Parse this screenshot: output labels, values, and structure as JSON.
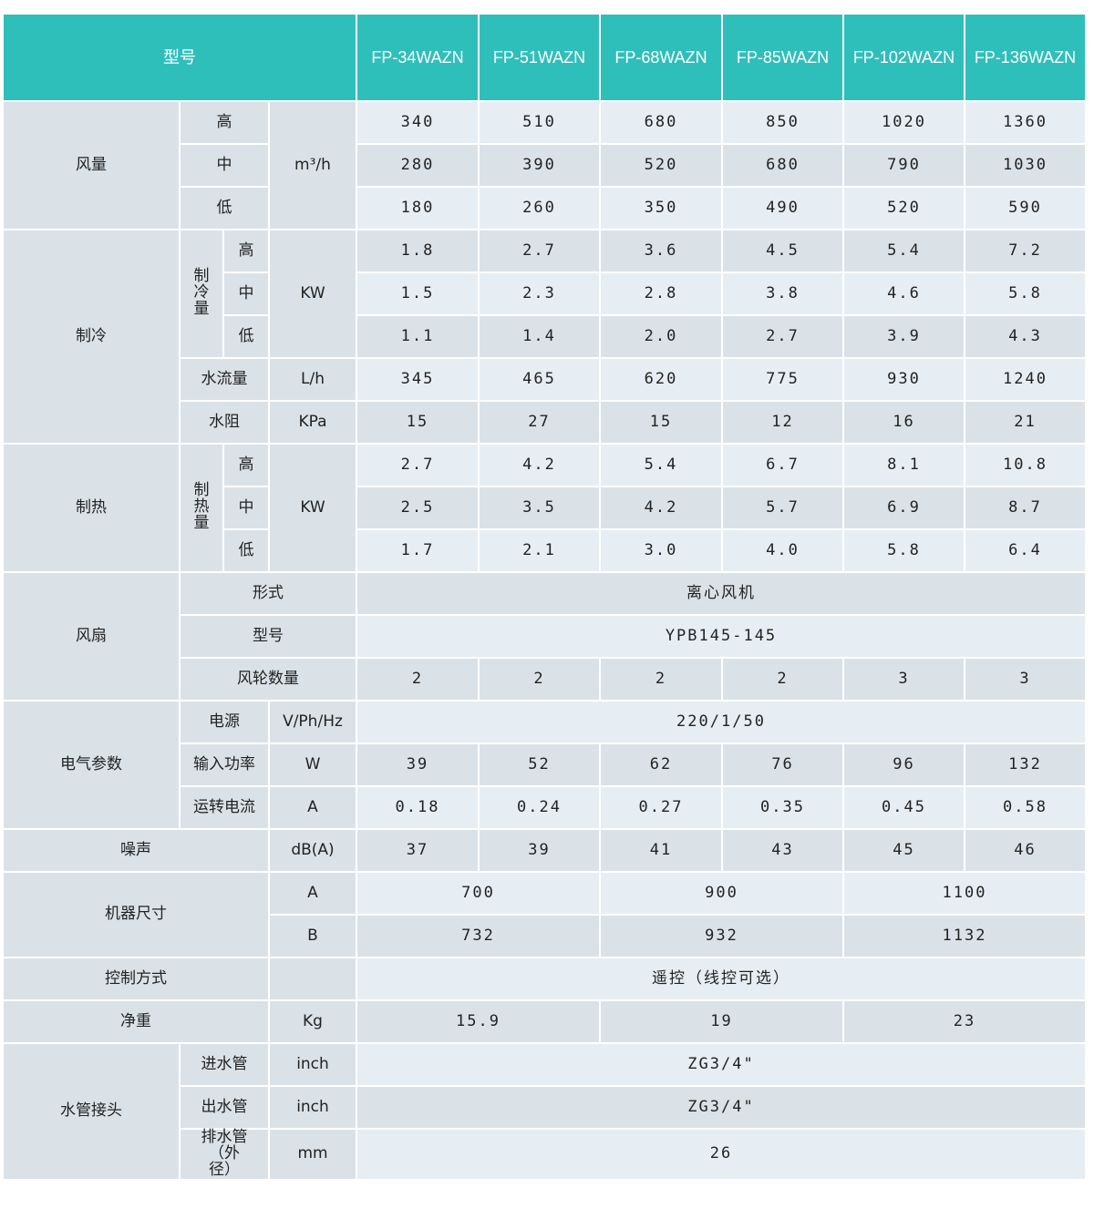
{
  "header": {
    "label": "型号",
    "models": [
      "FP-34WAZN",
      "FP-51WAZN",
      "FP-68WAZN",
      "FP-85WAZN",
      "FP-102WAZN",
      "FP-136WAZN"
    ]
  },
  "air_volume": {
    "label": "风量",
    "unit": "m³/h",
    "levels": [
      "高",
      "中",
      "低"
    ],
    "values": [
      [
        "340",
        "510",
        "680",
        "850",
        "1020",
        "1360"
      ],
      [
        "280",
        "390",
        "520",
        "680",
        "790",
        "1030"
      ],
      [
        "180",
        "260",
        "350",
        "490",
        "520",
        "590"
      ]
    ]
  },
  "cooling": {
    "label": "制冷",
    "capacity_label": "制冷量",
    "unit": "KW",
    "levels": [
      "高",
      "中",
      "低"
    ],
    "values": [
      [
        "1.8",
        "2.7",
        "3.6",
        "4.5",
        "5.4",
        "7.2"
      ],
      [
        "1.5",
        "2.3",
        "2.8",
        "3.8",
        "4.6",
        "5.8"
      ],
      [
        "1.1",
        "1.4",
        "2.0",
        "2.7",
        "3.9",
        "4.3"
      ]
    ],
    "water_flow": {
      "label": "水流量",
      "unit": "L/h",
      "values": [
        "345",
        "465",
        "620",
        "775",
        "930",
        "1240"
      ]
    },
    "water_resistance": {
      "label": "水阻",
      "unit": "KPa",
      "values": [
        "15",
        "27",
        "15",
        "12",
        "16",
        "21"
      ]
    }
  },
  "heating": {
    "label": "制热",
    "capacity_label": "制热量",
    "unit": "KW",
    "levels": [
      "高",
      "中",
      "低"
    ],
    "values": [
      [
        "2.7",
        "4.2",
        "5.4",
        "6.7",
        "8.1",
        "10.8"
      ],
      [
        "2.5",
        "3.5",
        "4.2",
        "5.7",
        "6.9",
        "8.7"
      ],
      [
        "1.7",
        "2.1",
        "3.0",
        "4.0",
        "5.8",
        "6.4"
      ]
    ]
  },
  "fan": {
    "label": "风扇",
    "type": {
      "label": "形式",
      "value": "离心风机"
    },
    "model": {
      "label": "型号",
      "value": "YPB145-145"
    },
    "wheel_count": {
      "label": "风轮数量",
      "values": [
        "2",
        "2",
        "2",
        "2",
        "3",
        "3"
      ]
    }
  },
  "electrical": {
    "label": "电气参数",
    "power_supply": {
      "label": "电源",
      "unit": "V/Ph/Hz",
      "value": "220/1/50"
    },
    "input_power": {
      "label": "输入功率",
      "unit": "W",
      "values": [
        "39",
        "52",
        "62",
        "76",
        "96",
        "132"
      ]
    },
    "running_current": {
      "label": "运转电流",
      "unit": "A",
      "values": [
        "0.18",
        "0.24",
        "0.27",
        "0.35",
        "0.45",
        "0.58"
      ]
    }
  },
  "noise": {
    "label": "噪声",
    "unit": "dB(A)",
    "values": [
      "37",
      "39",
      "41",
      "43",
      "45",
      "46"
    ]
  },
  "dimensions": {
    "label": "机器尺寸",
    "a": {
      "label": "A",
      "values": [
        "700",
        "900",
        "1100"
      ]
    },
    "b": {
      "label": "B",
      "values": [
        "732",
        "932",
        "1132"
      ]
    }
  },
  "control": {
    "label": "控制方式",
    "value": "遥控（线控可选）"
  },
  "net_weight": {
    "label": "净重",
    "unit": "Kg",
    "values": [
      "15.9",
      "19",
      "23"
    ]
  },
  "water_pipe": {
    "label": "水管接头",
    "inlet": {
      "label": "进水管",
      "unit": "inch",
      "value": "ZG3/4\""
    },
    "outlet": {
      "label": "出水管",
      "unit": "inch",
      "value": "ZG3/4\""
    },
    "drain": {
      "label": "排水管（外径）",
      "unit": "mm",
      "value": "26"
    }
  },
  "colors": {
    "header": "#2fbfbb",
    "label_bg": "#dbe2e7",
    "row_light": "#e7eef3",
    "row_dark": "#dbe2e7"
  }
}
